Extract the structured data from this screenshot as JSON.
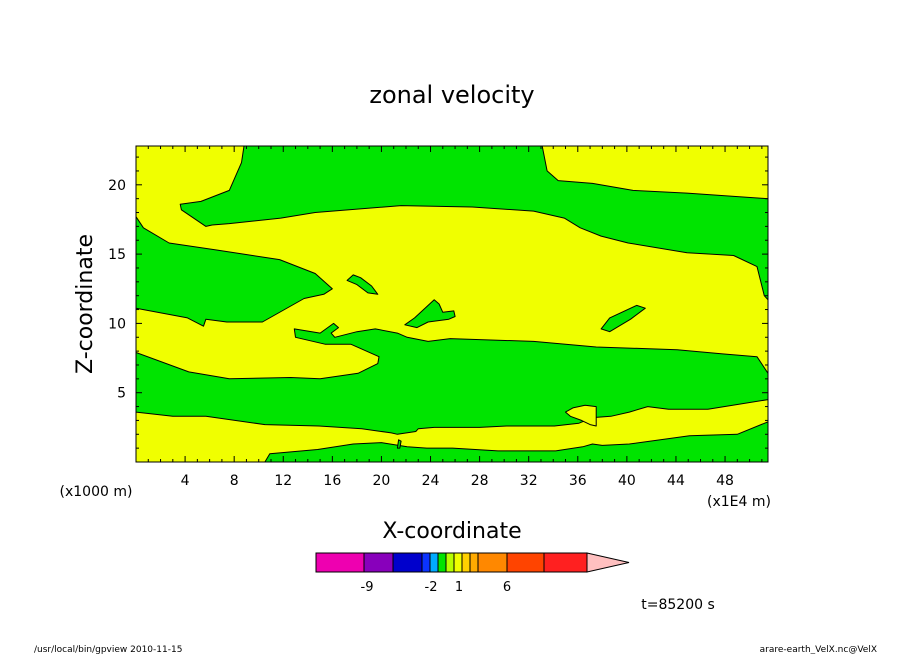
{
  "chart_data": {
    "type": "contour",
    "title": "zonal velocity",
    "xlabel": "X-coordinate",
    "ylabel": "Z-coordinate",
    "x_unit": "(x1E4 m)",
    "y_unit": "(x1000 m)",
    "x_ticks": [
      4,
      8,
      12,
      16,
      20,
      24,
      28,
      32,
      36,
      40,
      44,
      48
    ],
    "y_ticks": [
      5,
      10,
      15,
      20
    ],
    "xlim": [
      0,
      51.5
    ],
    "ylim": [
      0,
      22.8
    ],
    "background_level_color": "#f0ff00",
    "regions": [
      {
        "level": "green",
        "color": "#00e400",
        "points": [
          [
            0.6,
            16.9
          ],
          [
            2.7,
            15.8
          ],
          [
            6.5,
            15.3
          ],
          [
            11.7,
            14.6
          ],
          [
            14.6,
            13.6
          ],
          [
            16.0,
            12.5
          ],
          [
            15.3,
            12.1
          ],
          [
            13.7,
            11.8
          ],
          [
            10.3,
            10.1
          ],
          [
            7.4,
            10.1
          ],
          [
            5.7,
            10.3
          ],
          [
            5.5,
            9.8
          ],
          [
            4.2,
            10.4
          ],
          [
            0,
            11.1
          ],
          [
            0,
            17.7
          ]
        ]
      },
      {
        "level": "green",
        "color": "#00e400",
        "points": [
          [
            8.8,
            22.8
          ],
          [
            33.1,
            22.8
          ],
          [
            33.5,
            21.0
          ],
          [
            34.4,
            20.3
          ],
          [
            37.2,
            20.1
          ],
          [
            40.5,
            19.6
          ],
          [
            44.9,
            19.4
          ],
          [
            51.5,
            19.0
          ],
          [
            51.5,
            11.7
          ],
          [
            51.2,
            12.0
          ],
          [
            50.6,
            14.1
          ],
          [
            48.7,
            14.9
          ],
          [
            44.9,
            15.1
          ],
          [
            40.1,
            15.8
          ],
          [
            37.9,
            16.3
          ],
          [
            36.2,
            16.9
          ],
          [
            34.9,
            17.6
          ],
          [
            32.4,
            18.1
          ],
          [
            27.4,
            18.4
          ],
          [
            21.6,
            18.5
          ],
          [
            14.6,
            18.0
          ],
          [
            11.8,
            17.6
          ],
          [
            7.6,
            17.2
          ],
          [
            6.2,
            17.1
          ],
          [
            5.7,
            17.0
          ],
          [
            3.7,
            18.2
          ],
          [
            3.6,
            18.6
          ],
          [
            5.3,
            18.8
          ],
          [
            7.6,
            19.6
          ],
          [
            8.6,
            21.6
          ]
        ]
      },
      {
        "level": "green",
        "color": "#00e400",
        "points": [
          [
            12.9,
            9.6
          ],
          [
            15.0,
            9.3
          ],
          [
            16.1,
            10.0
          ],
          [
            16.5,
            9.7
          ],
          [
            15.9,
            9.3
          ],
          [
            16.2,
            9.0
          ],
          [
            18.0,
            9.4
          ],
          [
            19.5,
            9.6
          ],
          [
            21.3,
            9.3
          ],
          [
            22.1,
            9.0
          ],
          [
            23.8,
            8.7
          ],
          [
            25.6,
            8.9
          ],
          [
            32.4,
            8.7
          ],
          [
            37.5,
            8.3
          ],
          [
            44.1,
            8.1
          ],
          [
            47.8,
            7.8
          ],
          [
            50.6,
            7.6
          ],
          [
            51.5,
            6.4
          ],
          [
            51.5,
            4.5
          ],
          [
            46.6,
            3.8
          ],
          [
            43.4,
            3.8
          ],
          [
            41.7,
            4.0
          ],
          [
            40.2,
            3.6
          ],
          [
            38.7,
            3.3
          ],
          [
            37.2,
            3.2
          ],
          [
            36.1,
            2.8
          ],
          [
            35.1,
            2.7
          ],
          [
            34.1,
            2.6
          ],
          [
            32.5,
            2.6
          ],
          [
            30.2,
            2.6
          ],
          [
            28.0,
            2.5
          ],
          [
            25.6,
            2.5
          ],
          [
            24.3,
            2.5
          ],
          [
            23.0,
            2.4
          ],
          [
            22.8,
            2.2
          ],
          [
            21.3,
            2.0
          ],
          [
            20.8,
            2.1
          ],
          [
            18.4,
            2.4
          ],
          [
            14.9,
            2.6
          ],
          [
            10.5,
            2.7
          ],
          [
            5.7,
            3.3
          ],
          [
            3.0,
            3.3
          ],
          [
            0,
            3.6
          ],
          [
            0,
            7.9
          ],
          [
            4.3,
            6.5
          ],
          [
            7.6,
            6.0
          ],
          [
            12.6,
            6.1
          ],
          [
            15.0,
            6.0
          ],
          [
            18.1,
            6.4
          ],
          [
            19.7,
            7.1
          ],
          [
            19.8,
            7.6
          ],
          [
            17.5,
            8.5
          ],
          [
            15.4,
            8.5
          ],
          [
            13.0,
            9.0
          ]
        ]
      },
      {
        "level": "green",
        "color": "#00e400",
        "points": [
          [
            0,
            0
          ],
          [
            51.5,
            0
          ],
          [
            51.5,
            2.9
          ],
          [
            49.0,
            2.0
          ],
          [
            45.1,
            1.9
          ],
          [
            40.2,
            1.3
          ],
          [
            38.0,
            1.2
          ],
          [
            37.2,
            1.3
          ],
          [
            36.4,
            1.1
          ],
          [
            34.2,
            0.8
          ],
          [
            29.5,
            0.8
          ],
          [
            25.8,
            1.0
          ],
          [
            23.7,
            1.0
          ],
          [
            22.1,
            1.1
          ],
          [
            20.0,
            1.4
          ],
          [
            17.7,
            1.3
          ],
          [
            14.8,
            0.9
          ],
          [
            10.9,
            0.6
          ],
          [
            10.5,
            0
          ],
          [
            0,
            0
          ]
        ]
      },
      {
        "level": "yellow",
        "color": "#f0ff00",
        "points": [
          [
            35.0,
            3.6
          ],
          [
            35.6,
            3.9
          ],
          [
            36.6,
            4.1
          ],
          [
            37.5,
            4.0
          ],
          [
            37.5,
            2.6
          ],
          [
            37.0,
            2.7
          ],
          [
            36.3,
            3.0
          ],
          [
            35.4,
            3.3
          ]
        ]
      },
      {
        "level": "green",
        "color": "#00e400",
        "points": [
          [
            17.2,
            13.1
          ],
          [
            17.7,
            13.5
          ],
          [
            18.3,
            13.3
          ],
          [
            19.2,
            12.7
          ],
          [
            19.7,
            12.1
          ],
          [
            18.9,
            12.2
          ],
          [
            18.0,
            12.8
          ]
        ]
      },
      {
        "level": "green",
        "color": "#00e400",
        "points": [
          [
            21.9,
            9.9
          ],
          [
            22.7,
            10.4
          ],
          [
            24.3,
            11.7
          ],
          [
            24.7,
            11.4
          ],
          [
            25.0,
            10.8
          ],
          [
            25.9,
            10.9
          ],
          [
            26.0,
            10.5
          ],
          [
            25.5,
            10.3
          ],
          [
            23.8,
            10.1
          ],
          [
            22.9,
            9.7
          ]
        ]
      },
      {
        "level": "green",
        "color": "#00e400",
        "points": [
          [
            37.9,
            9.6
          ],
          [
            38.6,
            10.4
          ],
          [
            40.8,
            11.3
          ],
          [
            41.5,
            11.1
          ],
          [
            40.3,
            10.3
          ],
          [
            38.6,
            9.4
          ]
        ]
      },
      {
        "level": "green",
        "color": "#00e400",
        "points": [
          [
            21.4,
            1.6
          ],
          [
            21.6,
            1.5
          ],
          [
            21.5,
            1.0
          ],
          [
            21.3,
            1.0
          ]
        ]
      }
    ],
    "colorbar": {
      "colors": [
        "#ee00b0",
        "#8800bb",
        "#0000cc",
        "#0b33ff",
        "#00aaff",
        "#00e400",
        "#b8ff00",
        "#f0ff00",
        "#ffd000",
        "#ffaa00",
        "#ff8800",
        "#ff4400",
        "#ff2020",
        "#ff8080",
        "#ffc0c0"
      ],
      "labels": [
        "-9",
        "-2",
        "1",
        "6"
      ]
    },
    "time_label": "t=85200 s"
  },
  "footer": {
    "left": "/usr/local/bin/gpview   2010-11-15",
    "right": "arare-earth_VelX.nc@VelX"
  }
}
